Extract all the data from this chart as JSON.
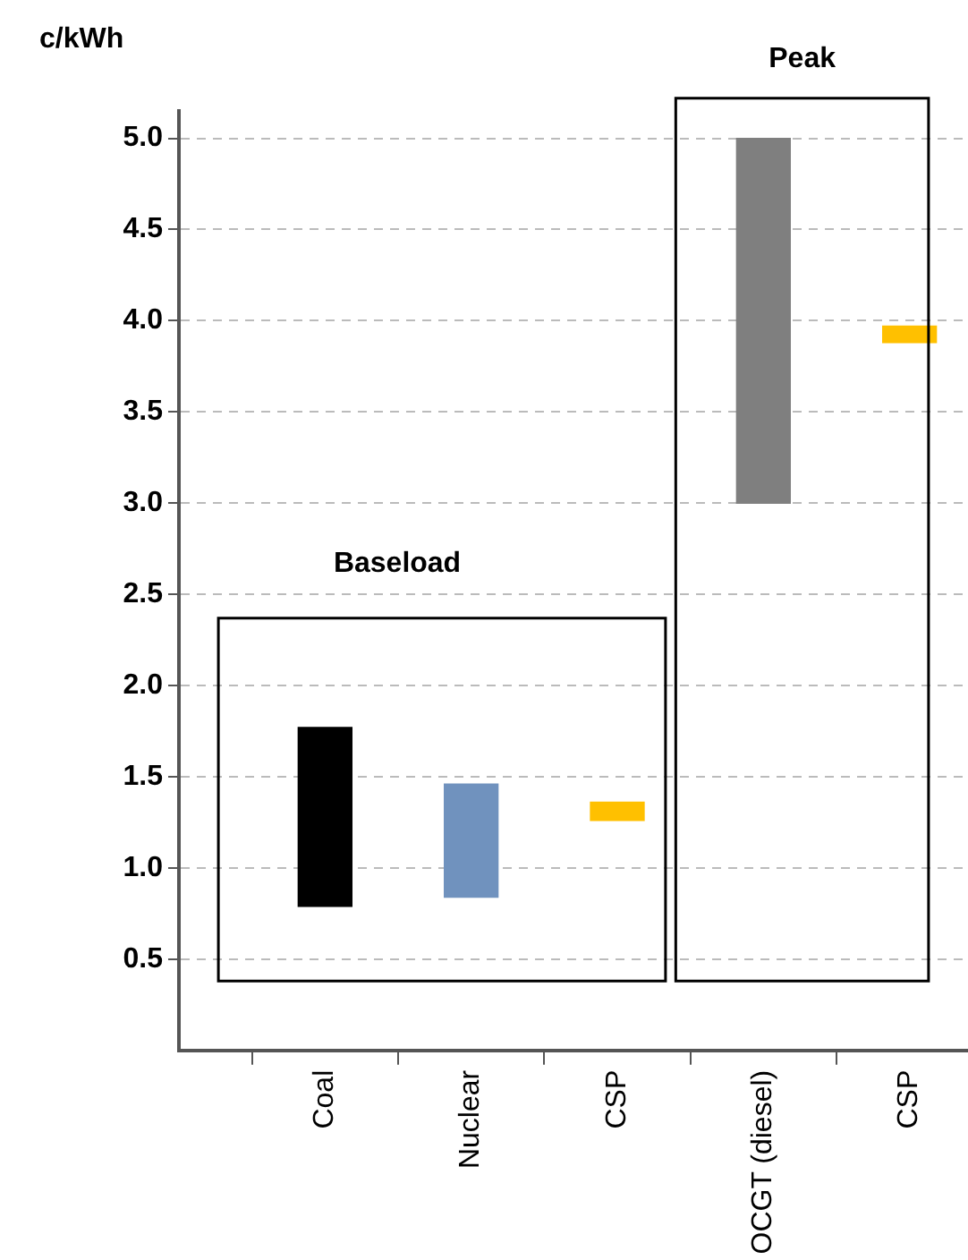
{
  "chart_data": {
    "type": "bar",
    "ylabel": "c/kWh",
    "categories": [
      "Coal",
      "Nuclear",
      "CSP",
      "OCGT (diesel)",
      "CSP"
    ],
    "values": [
      0.98,
      0.62,
      0.1,
      2.0,
      0.09
    ],
    "base": [
      0.79,
      0.84,
      1.26,
      3.0,
      3.88
    ],
    "colors": [
      "#000000",
      "#7092be",
      "#ffc000",
      "#7f7f7f",
      "#ffc000"
    ],
    "ylim": [
      0,
      5.15
    ],
    "yticks": [
      0.5,
      {
        "value": 1,
        "label": "1.0"
      },
      1.5,
      {
        "value": 2,
        "label": "2.0"
      },
      2.5,
      {
        "value": 3,
        "label": "3.0"
      },
      3.5,
      {
        "value": 4,
        "label": "4.0"
      },
      4.5,
      {
        "value": 5,
        "label": "5.0"
      }
    ],
    "grid": "y",
    "annotations": [
      "Baseload",
      "Peak"
    ]
  }
}
